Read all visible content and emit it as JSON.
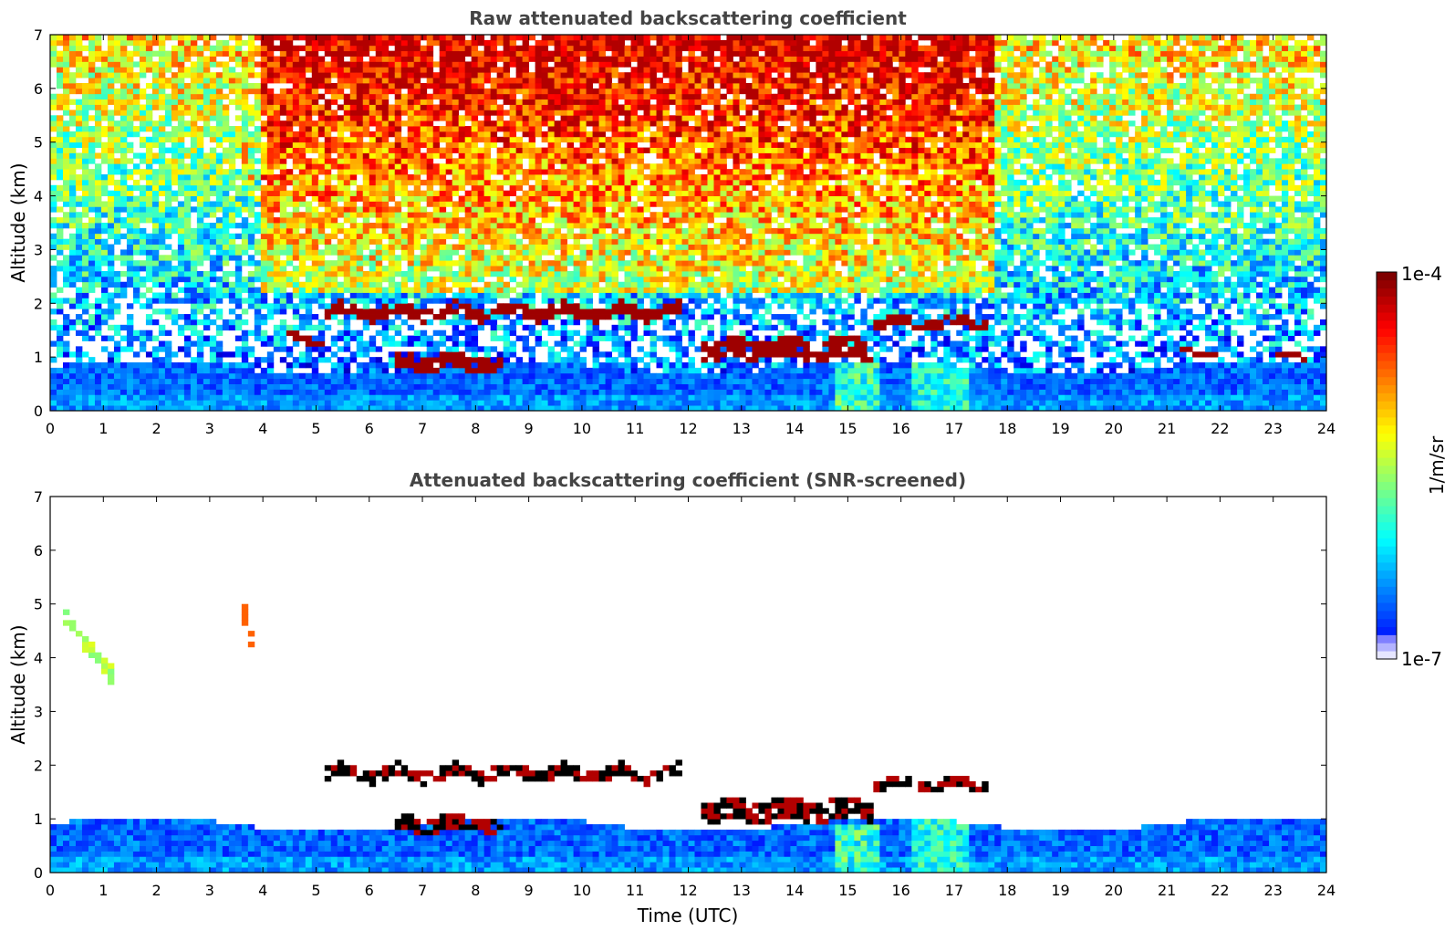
{
  "colors": {
    "jet": [
      "#00007f",
      "#0000ff",
      "#007fff",
      "#00ffff",
      "#7fff7f",
      "#ffff00",
      "#ff7f00",
      "#ff0000",
      "#7f0000"
    ],
    "cloud_core": "#8b0000",
    "screened_dense": "#000000"
  },
  "chart_data": [
    {
      "type": "heatmap",
      "title": "Raw attenuated backscattering coefficient",
      "xlabel": "",
      "ylabel": "Altitude (km)",
      "xlim": [
        0,
        24
      ],
      "ylim": [
        0,
        7
      ],
      "xticks": [
        "0",
        "1",
        "2",
        "3",
        "4",
        "5",
        "6",
        "7",
        "8",
        "9",
        "10",
        "11",
        "12",
        "13",
        "14",
        "15",
        "16",
        "17",
        "18",
        "19",
        "20",
        "21",
        "22",
        "23",
        "24"
      ],
      "yticks": [
        "0",
        "1",
        "2",
        "3",
        "4",
        "5",
        "6",
        "7"
      ],
      "colorscale": "jet-log",
      "clim": [
        "1e-7",
        "1e-4"
      ],
      "features": [
        {
          "kind": "noise_background",
          "x": [
            0,
            24
          ],
          "y": [
            1.5,
            7
          ],
          "level": "mid-high"
        },
        {
          "kind": "noise_background_strong",
          "x": [
            4,
            17.8
          ],
          "y": [
            2.5,
            7
          ],
          "level": "high"
        },
        {
          "kind": "boundary_layer",
          "x": [
            0,
            24
          ],
          "y": [
            0,
            0.8
          ],
          "level": "low-mid"
        },
        {
          "kind": "cloud_layer",
          "x": [
            5.2,
            11.9
          ],
          "y": 1.85,
          "thickness": 0.25
        },
        {
          "kind": "cloud_layer",
          "x": [
            15.5,
            17.6
          ],
          "y": 1.65,
          "thickness": 0.2
        },
        {
          "kind": "cloud_layer",
          "x": [
            6.5,
            8.5
          ],
          "y": 0.9,
          "thickness": 0.3
        },
        {
          "kind": "cloud_layer",
          "x": [
            12.2,
            15.5
          ],
          "y": 1.15,
          "thickness": 0.4
        },
        {
          "kind": "cloud_layer",
          "x": [
            4.5,
            5.3
          ],
          "y": 1.35,
          "thickness": 0.15
        },
        {
          "kind": "cloud_layer",
          "x": [
            21.2,
            21.9
          ],
          "y": 1.08,
          "thickness": 0.1
        },
        {
          "kind": "cloud_layer",
          "x": [
            23.0,
            23.7
          ],
          "y": 1.0,
          "thickness": 0.1
        },
        {
          "kind": "aerosol_streak",
          "x": [
            0.2,
            1.2
          ],
          "y": [
            4.9,
            3.6
          ]
        },
        {
          "kind": "aerosol_streak",
          "x": [
            3.6,
            3.8
          ],
          "y": [
            5.0,
            4.3
          ]
        }
      ]
    },
    {
      "type": "heatmap",
      "title": "Attenuated backscattering coefficient (SNR-screened)",
      "xlabel": "Time (UTC)",
      "ylabel": "Altitude (km)",
      "xlim": [
        0,
        24
      ],
      "ylim": [
        0,
        7
      ],
      "xticks": [
        "0",
        "1",
        "2",
        "3",
        "4",
        "5",
        "6",
        "7",
        "8",
        "9",
        "10",
        "11",
        "12",
        "13",
        "14",
        "15",
        "16",
        "17",
        "18",
        "19",
        "20",
        "21",
        "22",
        "23",
        "24"
      ],
      "yticks": [
        "0",
        "1",
        "2",
        "3",
        "4",
        "5",
        "6",
        "7"
      ],
      "colorscale": "jet-log",
      "clim": [
        "1e-7",
        "1e-4"
      ],
      "features": [
        {
          "kind": "boundary_layer",
          "x": [
            0,
            24
          ],
          "y": [
            0,
            0.9
          ],
          "level": "low-mid"
        },
        {
          "kind": "cloud_layer",
          "x": [
            5.2,
            11.9
          ],
          "y": 1.85,
          "thickness": 0.25
        },
        {
          "kind": "cloud_layer",
          "x": [
            15.5,
            17.6
          ],
          "y": 1.65,
          "thickness": 0.2
        },
        {
          "kind": "cloud_layer",
          "x": [
            6.5,
            8.5
          ],
          "y": 0.9,
          "thickness": 0.3
        },
        {
          "kind": "cloud_layer",
          "x": [
            12.2,
            15.5
          ],
          "y": 1.15,
          "thickness": 0.4
        },
        {
          "kind": "aerosol_streak",
          "x": [
            0.2,
            1.2
          ],
          "y": [
            4.9,
            3.6
          ]
        },
        {
          "kind": "aerosol_streak",
          "x": [
            3.6,
            3.8
          ],
          "y": [
            5.0,
            4.3
          ]
        }
      ]
    }
  ],
  "colorbar": {
    "max_label": "1e-4",
    "min_label": "1e-7",
    "unit_label": "1/m/sr"
  }
}
